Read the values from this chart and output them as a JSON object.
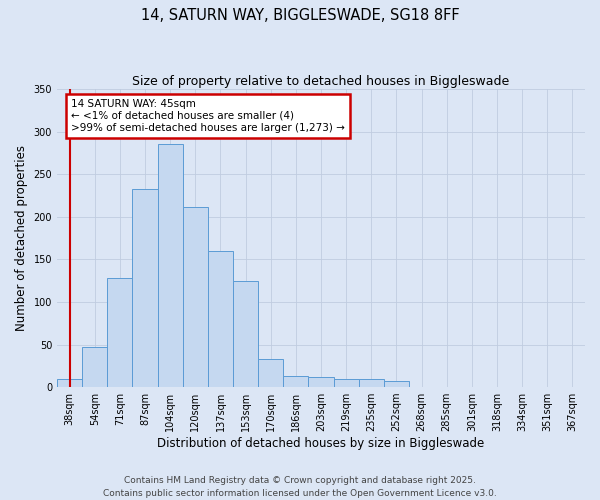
{
  "title_line1": "14, SATURN WAY, BIGGLESWADE, SG18 8FF",
  "title_line2": "Size of property relative to detached houses in Biggleswade",
  "xlabel": "Distribution of detached houses by size in Biggleswade",
  "ylabel": "Number of detached properties",
  "bin_labels": [
    "38sqm",
    "54sqm",
    "71sqm",
    "87sqm",
    "104sqm",
    "120sqm",
    "137sqm",
    "153sqm",
    "170sqm",
    "186sqm",
    "203sqm",
    "219sqm",
    "235sqm",
    "252sqm",
    "268sqm",
    "285sqm",
    "301sqm",
    "318sqm",
    "334sqm",
    "351sqm",
    "367sqm"
  ],
  "bar_heights": [
    10,
    47,
    128,
    233,
    285,
    212,
    160,
    125,
    33,
    13,
    12,
    10,
    10,
    7,
    0,
    0,
    0,
    0,
    0,
    0,
    0
  ],
  "bar_color": "#c5d8f0",
  "bar_edge_color": "#5b9bd5",
  "bg_color": "#dce6f5",
  "plot_bg_color": "#dce6f5",
  "grid_color": "#c0cce0",
  "annotation_text": "14 SATURN WAY: 45sqm\n← <1% of detached houses are smaller (4)\n>99% of semi-detached houses are larger (1,273) →",
  "annotation_box_color": "#ffffff",
  "annotation_border_color": "#cc0000",
  "marker_line_color": "#cc0000",
  "ylim": [
    0,
    350
  ],
  "yticks": [
    0,
    50,
    100,
    150,
    200,
    250,
    300,
    350
  ],
  "footer_line1": "Contains HM Land Registry data © Crown copyright and database right 2025.",
  "footer_line2": "Contains public sector information licensed under the Open Government Licence v3.0.",
  "title_fontsize": 10.5,
  "subtitle_fontsize": 9,
  "axis_label_fontsize": 8.5,
  "tick_fontsize": 7,
  "footer_fontsize": 6.5,
  "annotation_fontsize": 7.5
}
